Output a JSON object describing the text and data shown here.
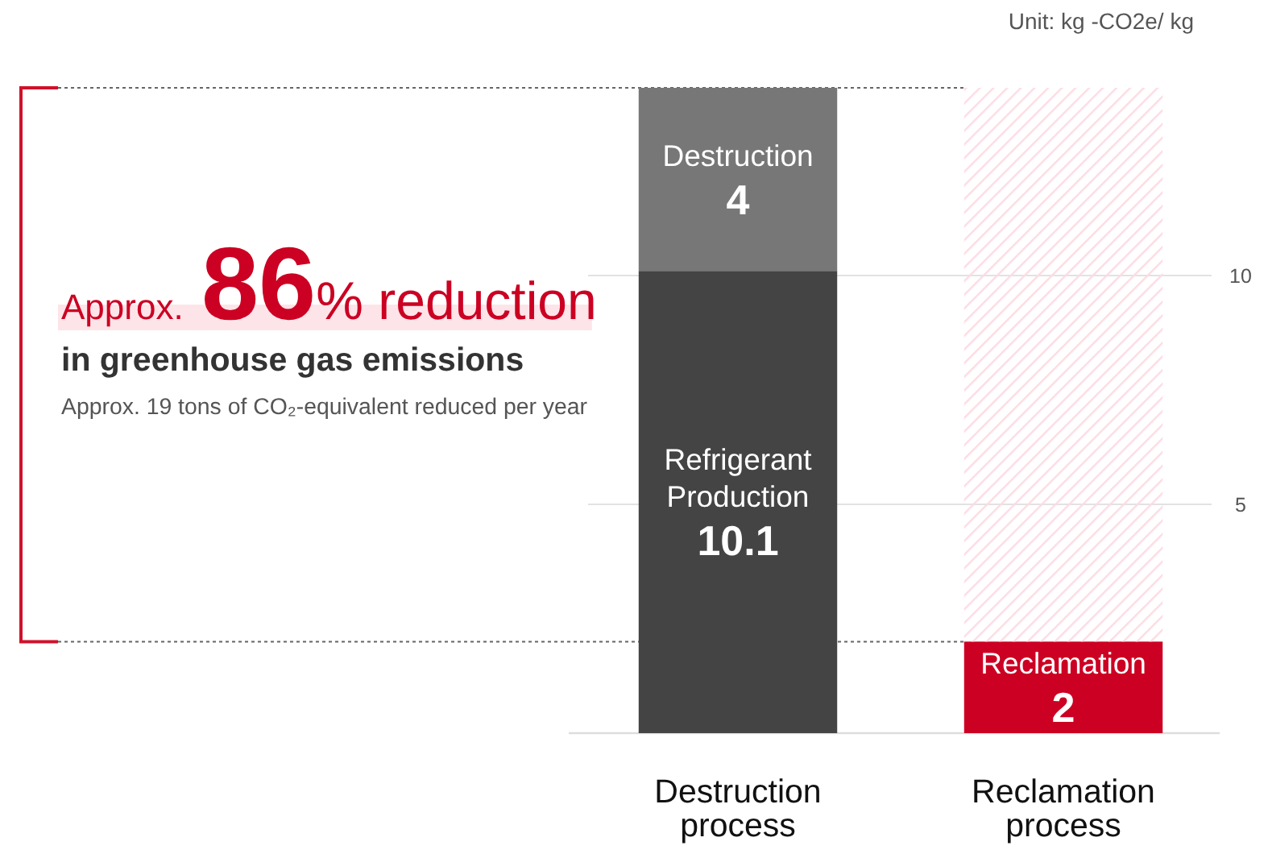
{
  "chart_data": {
    "type": "bar",
    "stacked": true,
    "ylabel": "Unit: kg -CO2e/ kg",
    "categories": [
      "Destruction process",
      "Reclamation process"
    ],
    "series": [
      {
        "name": "Refrigerant Production",
        "color": "#444444",
        "values": [
          10.1,
          null
        ],
        "value_labels": [
          "10.1",
          null
        ]
      },
      {
        "name": "Destruction",
        "color": "#777777",
        "values": [
          4,
          null
        ],
        "value_labels": [
          "4",
          null
        ]
      },
      {
        "name": "Reclamation",
        "color": "#cc0022",
        "values": [
          null,
          2
        ],
        "value_labels": [
          null,
          "2"
        ]
      },
      {
        "color": "#fcdce2",
        "values": [
          null,
          12.1
        ]
      }
    ],
    "ylim": [
      0,
      14.1
    ],
    "yticks": [
      5,
      10
    ],
    "grid": "y",
    "legend": false,
    "ref_lines": [
      {
        "axis": "y",
        "value": 14.1,
        "line_style": "dotted",
        "color": "#666666"
      },
      {
        "axis": "y",
        "value": 2,
        "line_style": "dotted",
        "color": "#666666"
      }
    ],
    "annotations": [
      "Approx. 86% reduction",
      "in greenhouse gas emissions",
      "Approx. 19 tons of CO₂-equivalent reduced per year"
    ]
  }
}
